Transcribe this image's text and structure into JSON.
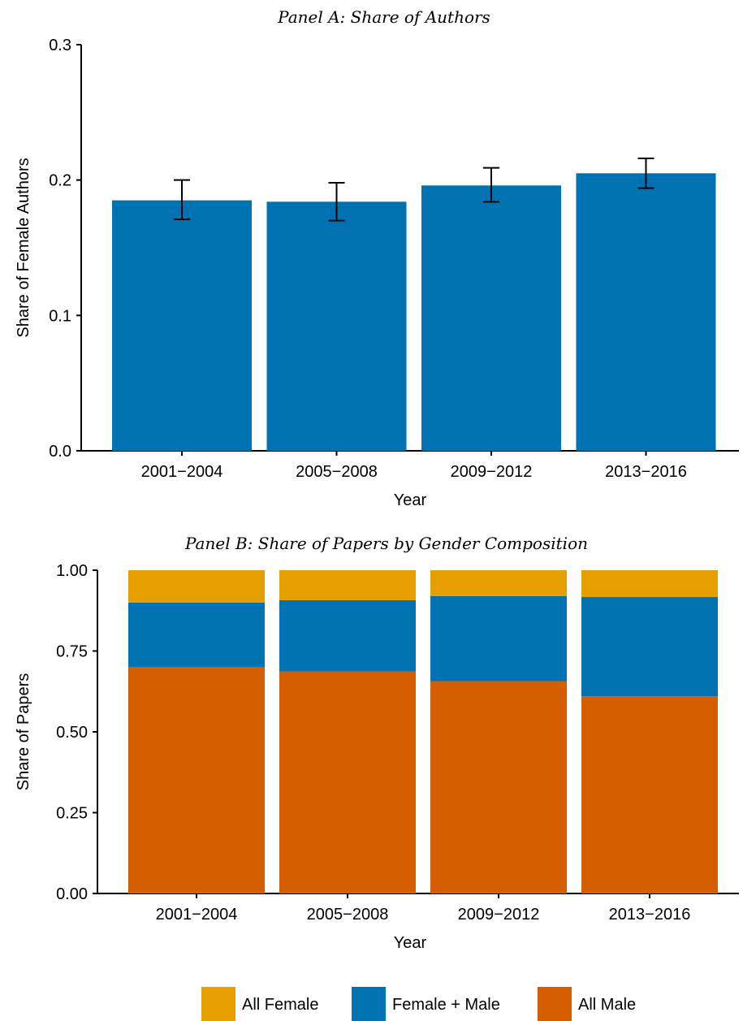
{
  "chart_data": [
    {
      "type": "bar",
      "title": "Panel A: Share of Authors",
      "xlabel": "Year",
      "ylabel": "Share of Female Authors",
      "ylim": [
        0,
        0.3
      ],
      "yticks": [
        "0.0",
        "0.1",
        "0.2",
        "0.3"
      ],
      "categories": [
        "2001−2004",
        "2005−2008",
        "2009−2012",
        "2013−2016"
      ],
      "values": [
        0.185,
        0.184,
        0.196,
        0.205
      ],
      "error_low": [
        0.171,
        0.17,
        0.184,
        0.194
      ],
      "error_high": [
        0.2,
        0.198,
        0.209,
        0.216
      ],
      "color": "#0072b2",
      "grid": false
    },
    {
      "type": "bar",
      "stacked": true,
      "title": "Panel B: Share of Papers by Gender Composition",
      "xlabel": "Year",
      "ylabel": "Share of Papers",
      "ylim": [
        0,
        1
      ],
      "yticks": [
        "0.00",
        "0.25",
        "0.50",
        "0.75",
        "1.00"
      ],
      "categories": [
        "2001−2004",
        "2005−2008",
        "2009−2012",
        "2013−2016"
      ],
      "series": [
        {
          "name": "All Male",
          "color": "#d55e00",
          "values": [
            0.7,
            0.687,
            0.657,
            0.61
          ]
        },
        {
          "name": "Female + Male",
          "color": "#0072b2",
          "values": [
            0.2,
            0.22,
            0.263,
            0.307
          ]
        },
        {
          "name": "All Female",
          "color": "#e69f00",
          "values": [
            0.1,
            0.093,
            0.08,
            0.083
          ]
        }
      ],
      "legend": {
        "position": "bottom",
        "order": [
          "All Female",
          "Female + Male",
          "All Male"
        ]
      },
      "grid": false
    }
  ]
}
